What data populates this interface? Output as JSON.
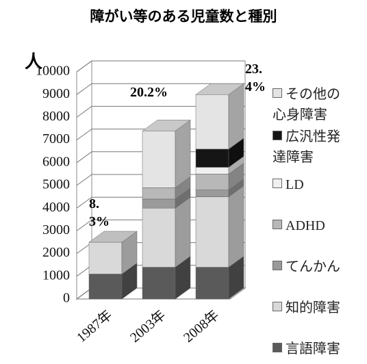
{
  "chart_data": {
    "type": "bar3d_stacked",
    "title": "障がい等のある児童数と種別",
    "y_label": "人",
    "categories": [
      "1987年",
      "2003年",
      "2008年"
    ],
    "series": [
      {
        "name": "言語障害",
        "color": "#5a5a5a",
        "values": [
          1100,
          1400,
          1400
        ]
      },
      {
        "name": "知的障害",
        "color": "#d9d9d9",
        "values": [
          1400,
          2600,
          3100
        ]
      },
      {
        "name": "てんかん",
        "color": "#9a9a9a",
        "values": [
          0,
          400,
          300
        ]
      },
      {
        "name": "ADHD",
        "color": "#b8b8b8",
        "values": [
          0,
          500,
          700
        ]
      },
      {
        "name": "LD",
        "color": "#f0f0f0",
        "values": [
          0,
          0,
          300
        ]
      },
      {
        "name": "広汎性発達障害",
        "color": "#151515",
        "values": [
          0,
          0,
          800
        ]
      },
      {
        "name": "その他の心身障害",
        "color": "#e4e4e4",
        "values": [
          0,
          2500,
          2400
        ]
      }
    ],
    "annotations": [
      "8.3%",
      "20.2%",
      "23.4%"
    ],
    "ylim": [
      0,
      10000
    ],
    "yticks": [
      0,
      1000,
      2000,
      3000,
      4000,
      5000,
      6000,
      7000,
      8000,
      9000,
      10000
    ],
    "grid": true
  }
}
